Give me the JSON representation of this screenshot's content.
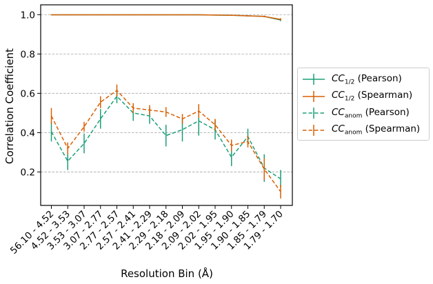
{
  "chart_data": {
    "type": "line",
    "title": "",
    "xlabel": "Resolution Bin (Å)",
    "ylabel": "Correlation Coefficient",
    "ylim": [
      0.03,
      1.05
    ],
    "yticks": [
      0.2,
      0.4,
      0.6,
      0.8,
      1.0
    ],
    "ytick_labels": [
      "0.2",
      "0.4",
      "0.6",
      "0.8",
      "1.0"
    ],
    "grid": "horizontal dashed",
    "legend_position": "outside-right",
    "categories": [
      "56.10 - 4.52",
      "4.52 - 3.53",
      "3.53 - 3.07",
      "3.07 - 2.77",
      "2.77 - 2.57",
      "2.57 - 2.41",
      "2.41 - 2.29",
      "2.29 - 2.18",
      "2.18 - 2.09",
      "2.09 - 2.02",
      "2.02 - 1.95",
      "1.95 - 1.90",
      "1.90 - 1.85",
      "1.85 - 1.79",
      "1.79 - 1.70"
    ],
    "series": [
      {
        "name_base": "CC",
        "name_sub": "1/2",
        "name_suffix": " (Pearson)",
        "color": "#1b9e77",
        "linestyle": "solid",
        "values": [
          0.999,
          0.999,
          0.999,
          0.999,
          0.999,
          0.999,
          0.999,
          0.999,
          0.999,
          0.999,
          0.998,
          0.997,
          0.994,
          0.991,
          0.973
        ],
        "errors": [
          0.002,
          0.002,
          0.002,
          0.002,
          0.002,
          0.002,
          0.002,
          0.002,
          0.002,
          0.002,
          0.002,
          0.002,
          0.003,
          0.004,
          0.006
        ]
      },
      {
        "name_base": "CC",
        "name_sub": "1/2",
        "name_suffix": " (Spearman)",
        "color": "#d95f02",
        "linestyle": "solid",
        "values": [
          0.999,
          0.999,
          0.999,
          0.999,
          0.999,
          0.999,
          0.999,
          0.999,
          0.999,
          0.999,
          0.998,
          0.997,
          0.994,
          0.991,
          0.976
        ],
        "errors": [
          0.002,
          0.002,
          0.002,
          0.002,
          0.002,
          0.002,
          0.002,
          0.002,
          0.002,
          0.002,
          0.002,
          0.002,
          0.003,
          0.004,
          0.006
        ]
      },
      {
        "name_base": "CC",
        "name_sub": "anom",
        "name_suffix": " (Pearson)",
        "color": "#1b9e77",
        "linestyle": "dashed",
        "values": [
          0.405,
          0.255,
          0.345,
          0.47,
          0.585,
          0.5,
          0.485,
          0.385,
          0.415,
          0.46,
          0.415,
          0.275,
          0.38,
          0.22,
          0.165
        ],
        "errors": [
          0.05,
          0.045,
          0.05,
          0.05,
          0.035,
          0.04,
          0.04,
          0.055,
          0.06,
          0.075,
          0.05,
          0.045,
          0.04,
          0.07,
          0.045
        ]
      },
      {
        "name_base": "CC",
        "name_sub": "anom",
        "name_suffix": " (Spearman)",
        "color": "#d95f02",
        "linestyle": "dashed",
        "values": [
          0.485,
          0.32,
          0.43,
          0.555,
          0.615,
          0.525,
          0.515,
          0.505,
          0.47,
          0.51,
          0.44,
          0.335,
          0.355,
          0.215,
          0.1
        ],
        "errors": [
          0.04,
          0.03,
          0.025,
          0.03,
          0.03,
          0.025,
          0.025,
          0.025,
          0.025,
          0.035,
          0.03,
          0.03,
          0.03,
          0.055,
          0.035
        ]
      }
    ]
  }
}
